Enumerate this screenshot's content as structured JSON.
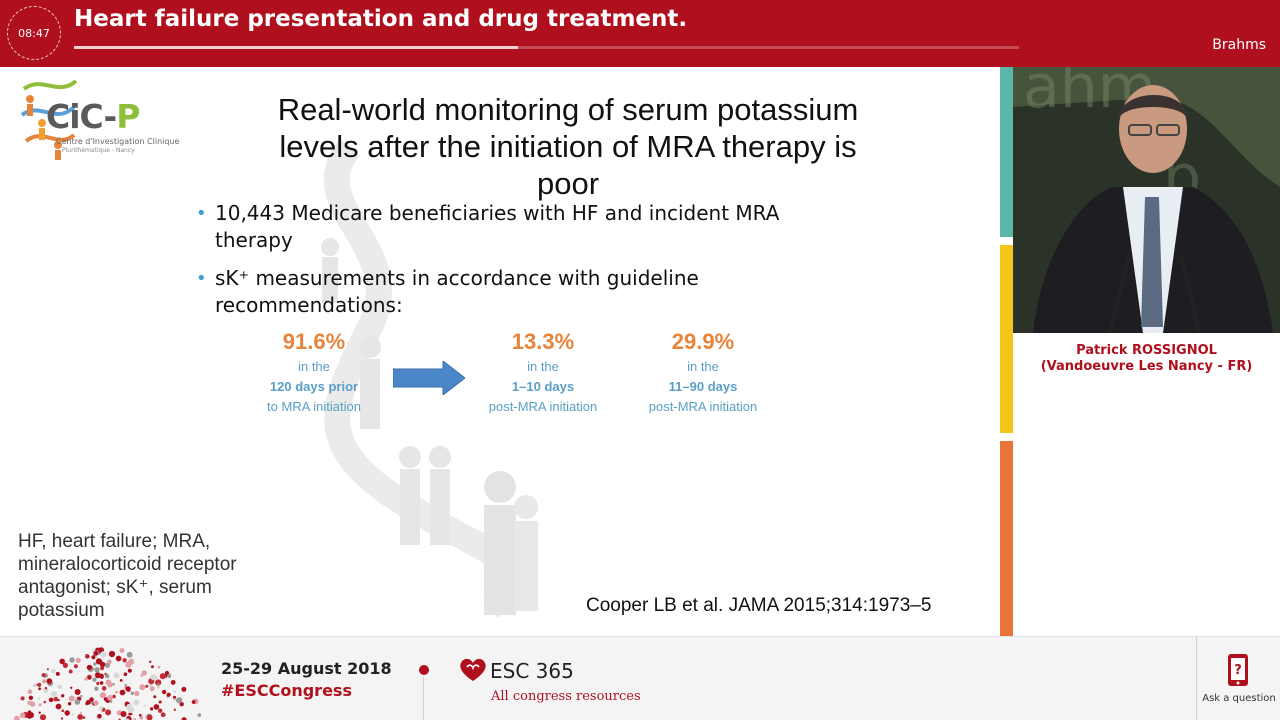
{
  "header": {
    "timer": "08:47",
    "title": "Heart failure presentation and drug treatment.",
    "progress": 0.47,
    "sponsor": "Brahms",
    "color": "#b0101e"
  },
  "slide": {
    "logo": {
      "name_main": "CiC-",
      "name_accent": "P",
      "subtitle": "Centre d'Investigation Clinique",
      "location": "Plurithématique - Nancy"
    },
    "title": "Real-world monitoring of serum potassium levels after the initiation of MRA therapy is poor",
    "bullets": [
      "10,443 Medicare beneficiaries with HF and incident MRA therapy",
      "sK⁺ measurements in accordance with guideline recommendations:"
    ],
    "stats": [
      {
        "value": "91.6%",
        "line1": "in the",
        "line2": "120 days prior",
        "line3": "to MRA initiation"
      },
      {
        "value": "13.3%",
        "line1": "in the",
        "line2": "1–10 days",
        "line3": "post-MRA initiation"
      },
      {
        "value": "29.9%",
        "line1": "in the",
        "line2": "11–90 days",
        "line3": "post-MRA initiation"
      }
    ],
    "footnote": "HF, heart failure; MRA, mineralocorticoid receptor antagonist; sK⁺, serum potassium",
    "reference": "Cooper LB et al. JAMA 2015;314:1973–5",
    "accent_color": "#e8843a",
    "stat_text_color": "#5a9ec8",
    "bullet_color": "#3aa0c8",
    "arrow_color": "#4a86c8"
  },
  "right_panel": {
    "speaker_name": "Patrick ROSSIGNOL",
    "speaker_affiliation": "(Vandoeuvre Les Nancy - FR)",
    "stripe_colors": [
      "#5bb8a8",
      "#f5c518",
      "#e8743a"
    ]
  },
  "footer": {
    "dates": "25-29 August 2018",
    "hashtag": "#ESCCongress",
    "esc_label": "ESC 365",
    "esc_sub": "All congress resources",
    "ask_label": "Ask a question",
    "phone_icon": "question-phone-icon"
  }
}
